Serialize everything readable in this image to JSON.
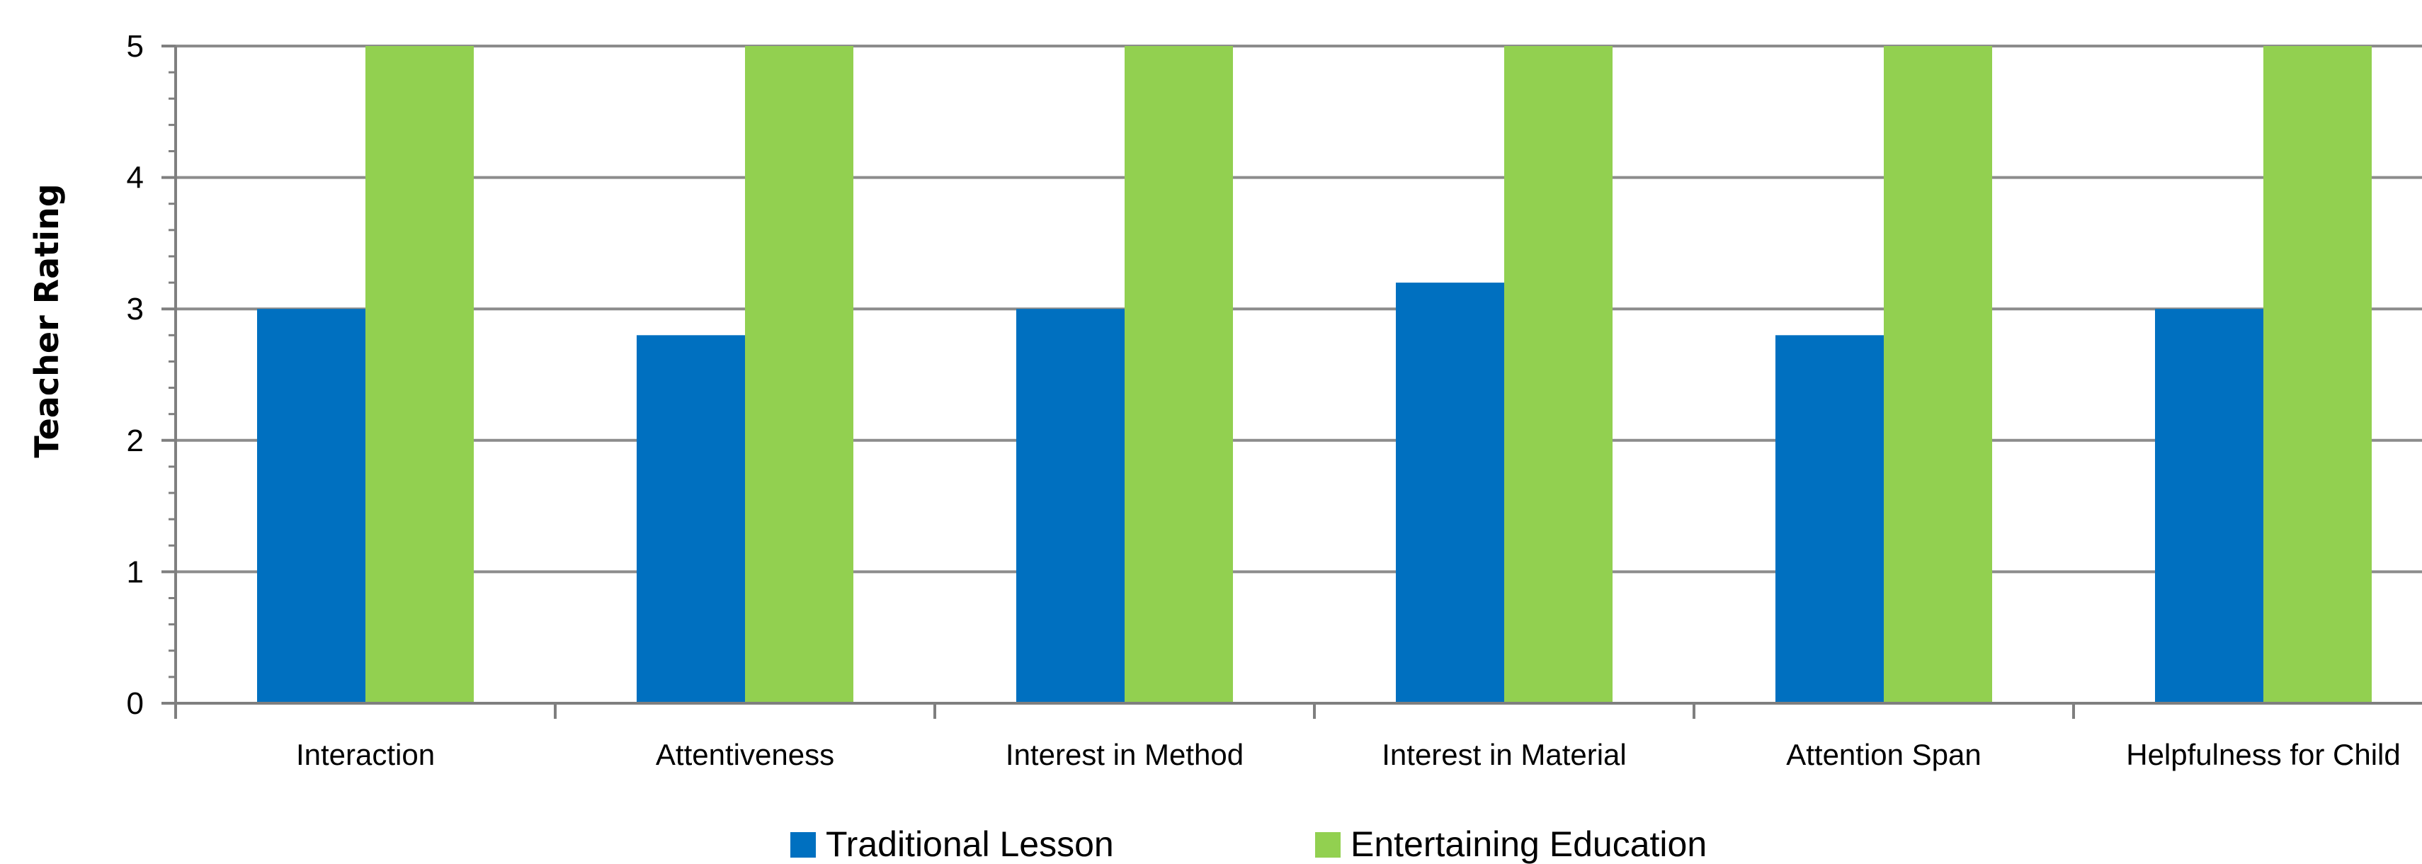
{
  "chart_data": {
    "type": "bar",
    "title": "",
    "xlabel": "",
    "ylabel": "Teacher Rating",
    "ylim": [
      0,
      5
    ],
    "yticks": [
      0,
      1,
      2,
      3,
      4,
      5
    ],
    "grid": true,
    "legend_position": "bottom",
    "categories": [
      "Interaction",
      "Attentiveness",
      "Interest in Method",
      "Interest in Material",
      "Attention Span",
      "Helpfulness for Child"
    ],
    "series": [
      {
        "name": "Traditional Lesson",
        "color": "#0070C0",
        "values": [
          3.0,
          2.8,
          3.0,
          3.2,
          2.8,
          3.0
        ]
      },
      {
        "name": "Entertaining Education",
        "color": "#92D050",
        "values": [
          5.0,
          5.0,
          5.0,
          5.0,
          5.0,
          5.0
        ]
      }
    ]
  }
}
